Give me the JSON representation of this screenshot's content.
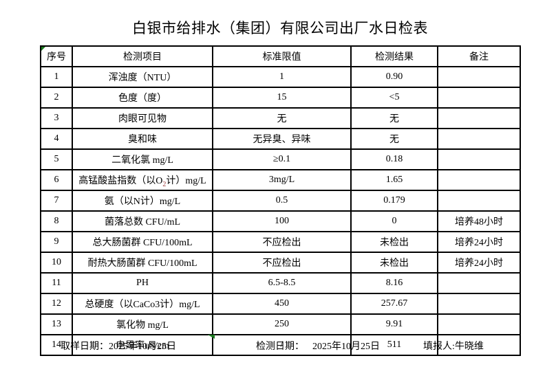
{
  "title": "白银市给排水（集团）有限公司出厂水日检表",
  "table": {
    "headers": [
      "序号",
      "检测项目",
      "标准限值",
      "检测结果",
      "备注"
    ],
    "rows": [
      {
        "no": "1",
        "item": "浑浊度（NTU）",
        "limit": "1",
        "result": "0.90",
        "remark": ""
      },
      {
        "no": "2",
        "item": "色度（度）",
        "limit": "15",
        "result": "<5",
        "remark": ""
      },
      {
        "no": "3",
        "item": "肉眼可见物",
        "limit": "无",
        "result": "无",
        "remark": ""
      },
      {
        "no": "4",
        "item": "臭和味",
        "limit": "无异臭、异味",
        "result": "无",
        "remark": ""
      },
      {
        "no": "5",
        "item": "二氧化氯 mg/L",
        "limit": "≥0.1",
        "result": "0.18",
        "remark": ""
      },
      {
        "no": "6",
        "item": [
          {
            "t": "高锰酸盐指数（以O"
          },
          {
            "t": "2",
            "sub": true,
            "color": "#993333"
          },
          {
            "t": "计）mg/L"
          }
        ],
        "limit": "3mg/L",
        "result": "1.65",
        "remark": ""
      },
      {
        "no": "7",
        "item": "氨（以N计）mg/L",
        "limit": "0.5",
        "result": "0.179",
        "remark": ""
      },
      {
        "no": "8",
        "item": "菌落总数 CFU/mL",
        "limit": "100",
        "result": "0",
        "remark": "培养48小时"
      },
      {
        "no": "9",
        "item": "总大肠菌群 CFU/100mL",
        "limit": "不应检出",
        "result": "未检出",
        "remark": "培养24小时"
      },
      {
        "no": "10",
        "item": "耐热大肠菌群 CFU/100mL",
        "limit": "不应检出",
        "result": "未检出",
        "remark": "培养24小时"
      },
      {
        "no": "11",
        "item": "PH",
        "limit": "6.5-8.5",
        "result": "8.16",
        "remark": ""
      },
      {
        "no": "12",
        "item": "总硬度（以CaCo3计）mg/L",
        "limit": "450",
        "result": "257.67",
        "remark": ""
      },
      {
        "no": "13",
        "item": "氯化物 mg/L",
        "limit": "250",
        "result": "9.91",
        "remark": ""
      },
      {
        "no": "14",
        "item": "电导率uS/cm",
        "limit": "/",
        "result": "511",
        "remark": ""
      }
    ]
  },
  "footer": {
    "sample_date_label": "取样日期：",
    "sample_date": "2025年10月25日",
    "test_date_label": "检测日期：",
    "test_date": "2025年10月25日",
    "reporter_label": "填报人:",
    "reporter": "牛晓维"
  },
  "colors": {
    "grid_line": "#000000",
    "marker_green": "#1a7a1f",
    "subscript_red": "#993333"
  }
}
